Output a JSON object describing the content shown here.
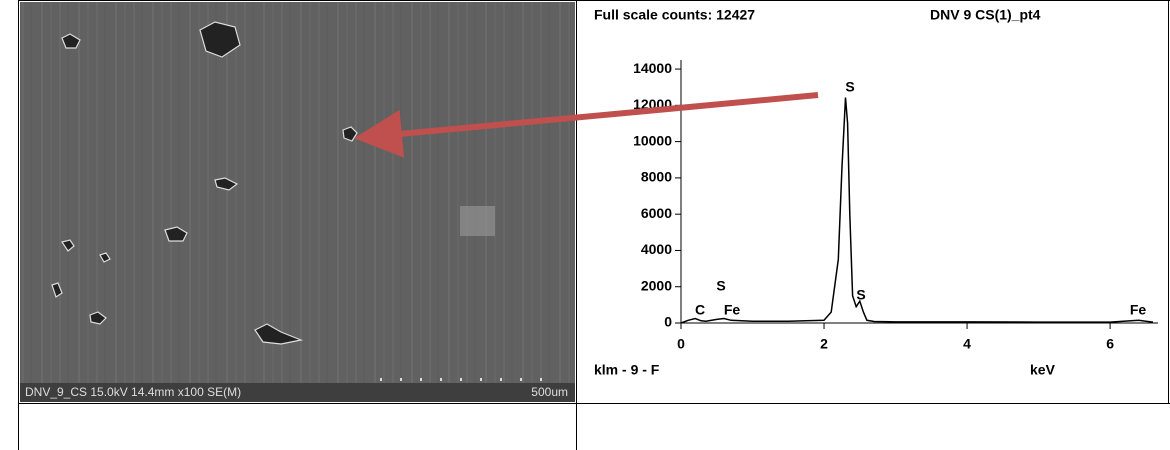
{
  "table": {
    "rows": [
      [
        {
          "image_caption": "DNV_9_CS 15.0kV 14.4mm x100 SE(M)",
          "scale_label": "500um"
        },
        {}
      ],
      [
        {},
        {}
      ]
    ]
  },
  "chart_data": {
    "type": "line",
    "header_left": "Full scale counts: 12427",
    "header_right": "DNV 9 CS(1)_pt4",
    "footer_left": "klm - 9 - F",
    "x_label": "keV",
    "x": [
      0,
      0.1,
      0.2,
      0.28,
      0.35,
      0.5,
      0.6,
      0.7,
      1.0,
      1.5,
      2.0,
      2.1,
      2.2,
      2.25,
      2.3,
      2.33,
      2.36,
      2.4,
      2.45,
      2.5,
      2.55,
      2.6,
      2.7,
      3.0,
      4.0,
      5.0,
      6.0,
      6.4,
      6.6
    ],
    "values": [
      0,
      150,
      250,
      120,
      100,
      200,
      250,
      150,
      100,
      100,
      150,
      600,
      3500,
      8500,
      12427,
      11000,
      6000,
      1500,
      900,
      1200,
      600,
      150,
      80,
      60,
      60,
      50,
      50,
      150,
      50
    ],
    "color": "#000000",
    "peak_labels": [
      "C",
      "S",
      "Fe",
      "S",
      "S",
      "Fe"
    ],
    "xlim": [
      0,
      6.6
    ],
    "xticks": [
      0,
      2,
      4,
      6
    ],
    "ylim": [
      0,
      14500
    ],
    "yticks": [
      0,
      2000,
      4000,
      6000,
      8000,
      10000,
      12000,
      14000
    ]
  }
}
